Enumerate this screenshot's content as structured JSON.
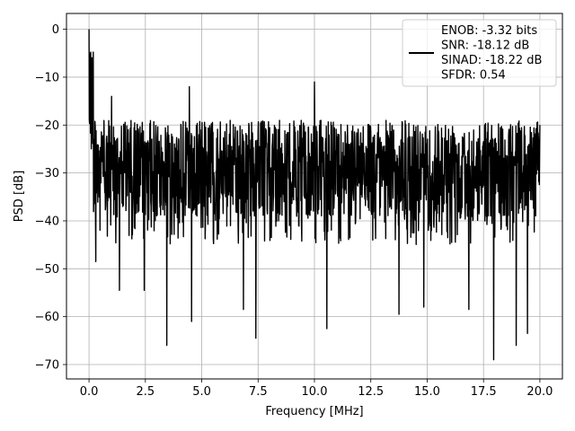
{
  "chart_data": {
    "type": "line",
    "title": "",
    "xlabel": "Frequency [MHz]",
    "ylabel": "PSD [dB]",
    "xlim": [
      -1.0,
      21.0
    ],
    "ylim": [
      -73,
      3.3
    ],
    "xticks": [
      0.0,
      2.5,
      5.0,
      7.5,
      10.0,
      12.5,
      15.0,
      17.5,
      20.0
    ],
    "xtick_labels": [
      "0.0",
      "2.5",
      "5.0",
      "7.5",
      "10.0",
      "12.5",
      "15.0",
      "17.5",
      "20.0"
    ],
    "yticks": [
      0,
      -10,
      -20,
      -30,
      -40,
      -50,
      -60,
      -70
    ],
    "ytick_labels": [
      "0",
      "−10",
      "−20",
      "−30",
      "−40",
      "−50",
      "−60",
      "−70"
    ],
    "grid": true,
    "legend_position": "top-right",
    "legend_lines": [
      "ENOB: -3.32 bits",
      "SNR: -18.12 dB",
      "SINAD: -18.22 dB",
      "SFDR: 0.54"
    ],
    "series": [
      {
        "color": "#000000",
        "x_range": [
          0.0,
          20.0
        ],
        "typical_upper": -19,
        "typical_lower": -39,
        "peaks": [
          {
            "x": 0.0,
            "y": 0.0
          },
          {
            "x": 0.05,
            "y": -5
          },
          {
            "x": 0.15,
            "y": -12
          },
          {
            "x": 1.0,
            "y": -14
          },
          {
            "x": 4.45,
            "y": -12
          },
          {
            "x": 10.0,
            "y": -11
          },
          {
            "x": 20.0,
            "y": -20
          }
        ],
        "dips": [
          {
            "x": 0.3,
            "y": -48.5
          },
          {
            "x": 1.35,
            "y": -54.5
          },
          {
            "x": 2.45,
            "y": -54.5
          },
          {
            "x": 3.45,
            "y": -66
          },
          {
            "x": 4.55,
            "y": -61
          },
          {
            "x": 6.85,
            "y": -58.5
          },
          {
            "x": 7.4,
            "y": -64.5
          },
          {
            "x": 10.55,
            "y": -62.5
          },
          {
            "x": 13.75,
            "y": -59.5
          },
          {
            "x": 14.85,
            "y": -58
          },
          {
            "x": 16.85,
            "y": -58.5
          },
          {
            "x": 17.95,
            "y": -69
          },
          {
            "x": 18.95,
            "y": -66
          },
          {
            "x": 19.45,
            "y": -63.5
          }
        ]
      }
    ]
  }
}
